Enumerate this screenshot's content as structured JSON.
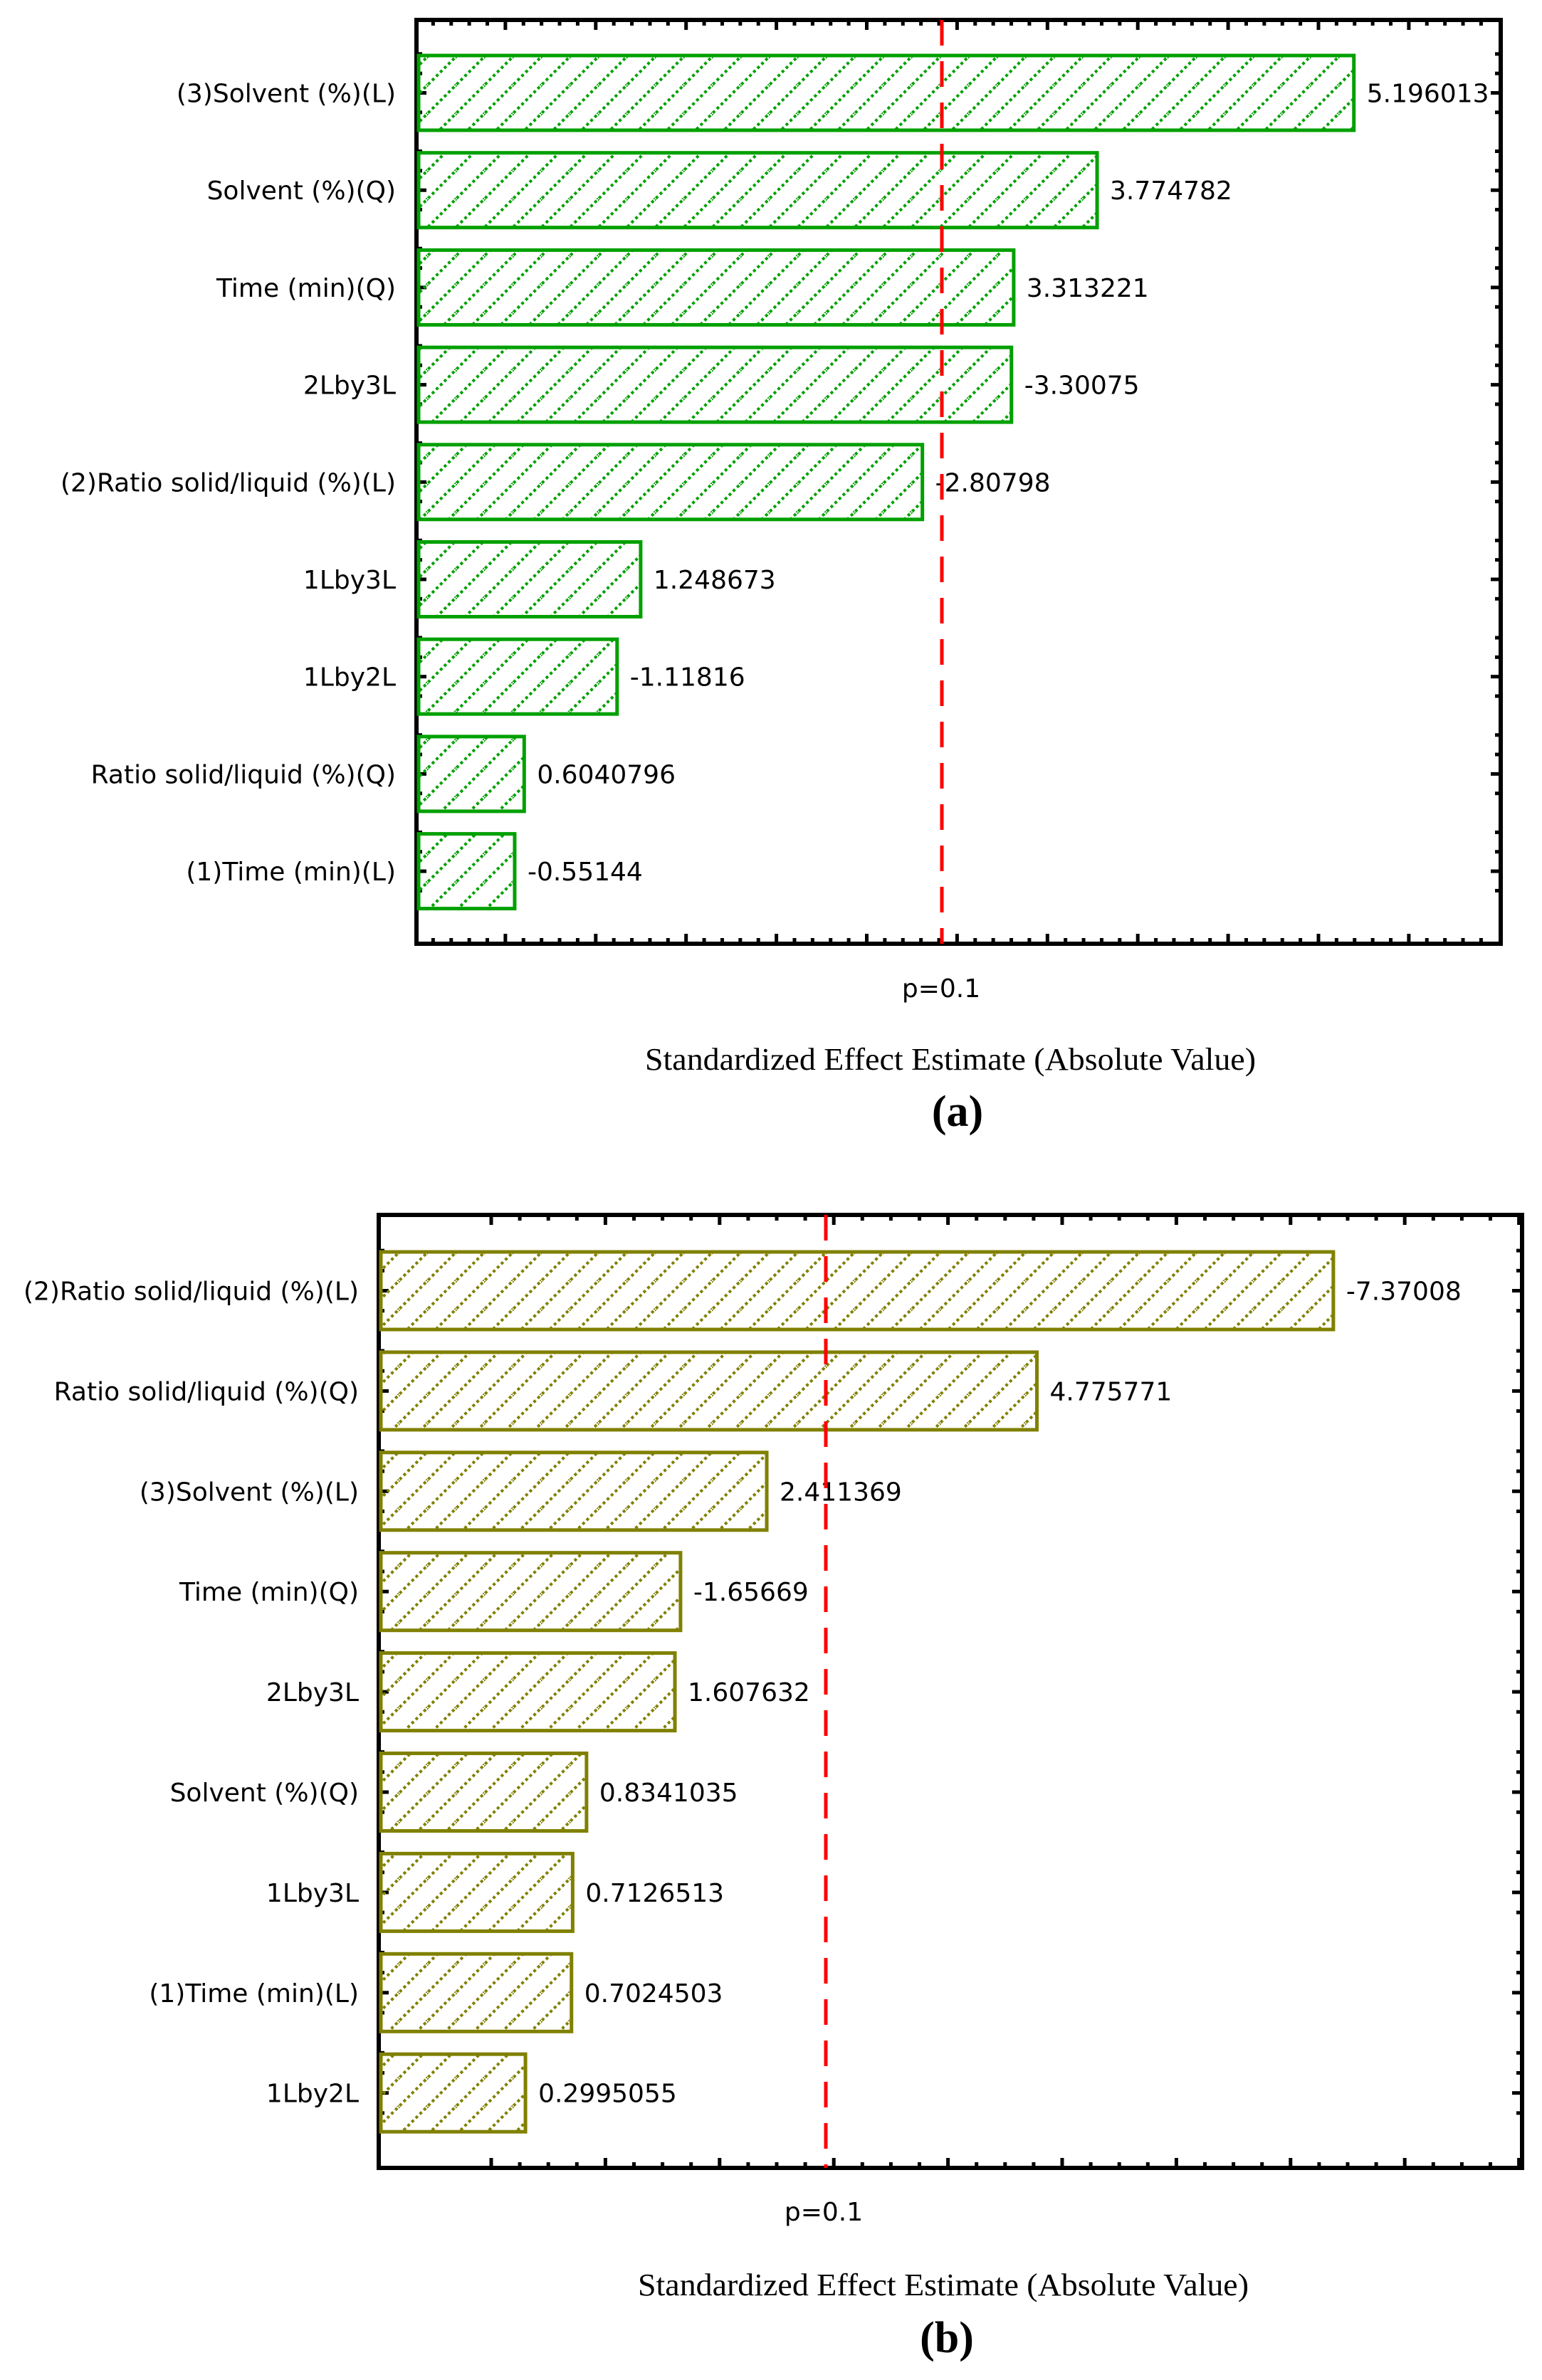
{
  "chart_data": [
    {
      "type": "bar",
      "orientation": "horizontal",
      "panel": "(a)",
      "title": "",
      "xlabel": "Standardized Effect Estimate (Absolute Value)",
      "ylabel": "",
      "reference_line": {
        "label": "p=0.1",
        "value": 2.92,
        "style": "dashed",
        "color": "#ff0000"
      },
      "bar_color": "#00a000",
      "bar_fill": "diagonal-hatch",
      "categories": [
        "(3)Solvent (%)(L)",
        "Solvent (%)(Q)",
        "Time (min)(Q)",
        "2Lby3L",
        "(2)Ratio solid/liquid (%)(L)",
        "1Lby3L",
        "1Lby2L",
        "Ratio solid/liquid (%)(Q)",
        "(1)Time (min)(L)"
      ],
      "values": [
        5.196013,
        3.774782,
        3.313221,
        -3.30075,
        -2.80798,
        1.248673,
        -1.11816,
        0.6040796,
        -0.55144
      ],
      "value_labels": [
        "5.196013",
        "3.774782",
        "3.313221",
        "-3.30075",
        "-2.80798",
        "1.248673",
        "-1.11816",
        "0.6040796",
        "-0.55144"
      ],
      "grid": false,
      "tick_labels_x": []
    },
    {
      "type": "bar",
      "orientation": "horizontal",
      "panel": "(b)",
      "title": "",
      "xlabel": "Standardized Effect Estimate (Absolute Value)",
      "ylabel": "",
      "reference_line": {
        "label": "p=0.1",
        "value": 2.93,
        "style": "dashed",
        "color": "#ff0000"
      },
      "bar_color": "#808000",
      "bar_fill": "diagonal-hatch",
      "categories": [
        "(2)Ratio solid/liquid (%)(L)",
        "Ratio solid/liquid (%)(Q)",
        "(3)Solvent (%)(L)",
        "Time (min)(Q)",
        "2Lby3L",
        "Solvent (%)(Q)",
        "1Lby3L",
        "(1)Time (min)(L)",
        "1Lby2L"
      ],
      "values": [
        -7.37008,
        4.775771,
        2.411369,
        -1.65669,
        1.607632,
        0.8341035,
        0.7126513,
        0.7024503,
        0.2995055
      ],
      "value_labels": [
        "-7.37008",
        "4.775771",
        "2.411369",
        "-1.65669",
        "1.607632",
        "0.8341035",
        "0.7126513",
        "0.7024503",
        "0.2995055"
      ],
      "grid": false,
      "tick_labels_x": []
    }
  ],
  "panels": {
    "a": {
      "label": "(a)",
      "xlabel": "Standardized Effect Estimate (Absolute Value)",
      "p_label": "p=0.1"
    },
    "b": {
      "label": "(b)",
      "xlabel": "Standardized Effect Estimate (Absolute Value)",
      "p_label": "p=0.1"
    }
  },
  "colors": {
    "bar_a": "#00a000",
    "bar_b": "#808000",
    "ref_line": "#ff0000",
    "axis": "#000000"
  }
}
